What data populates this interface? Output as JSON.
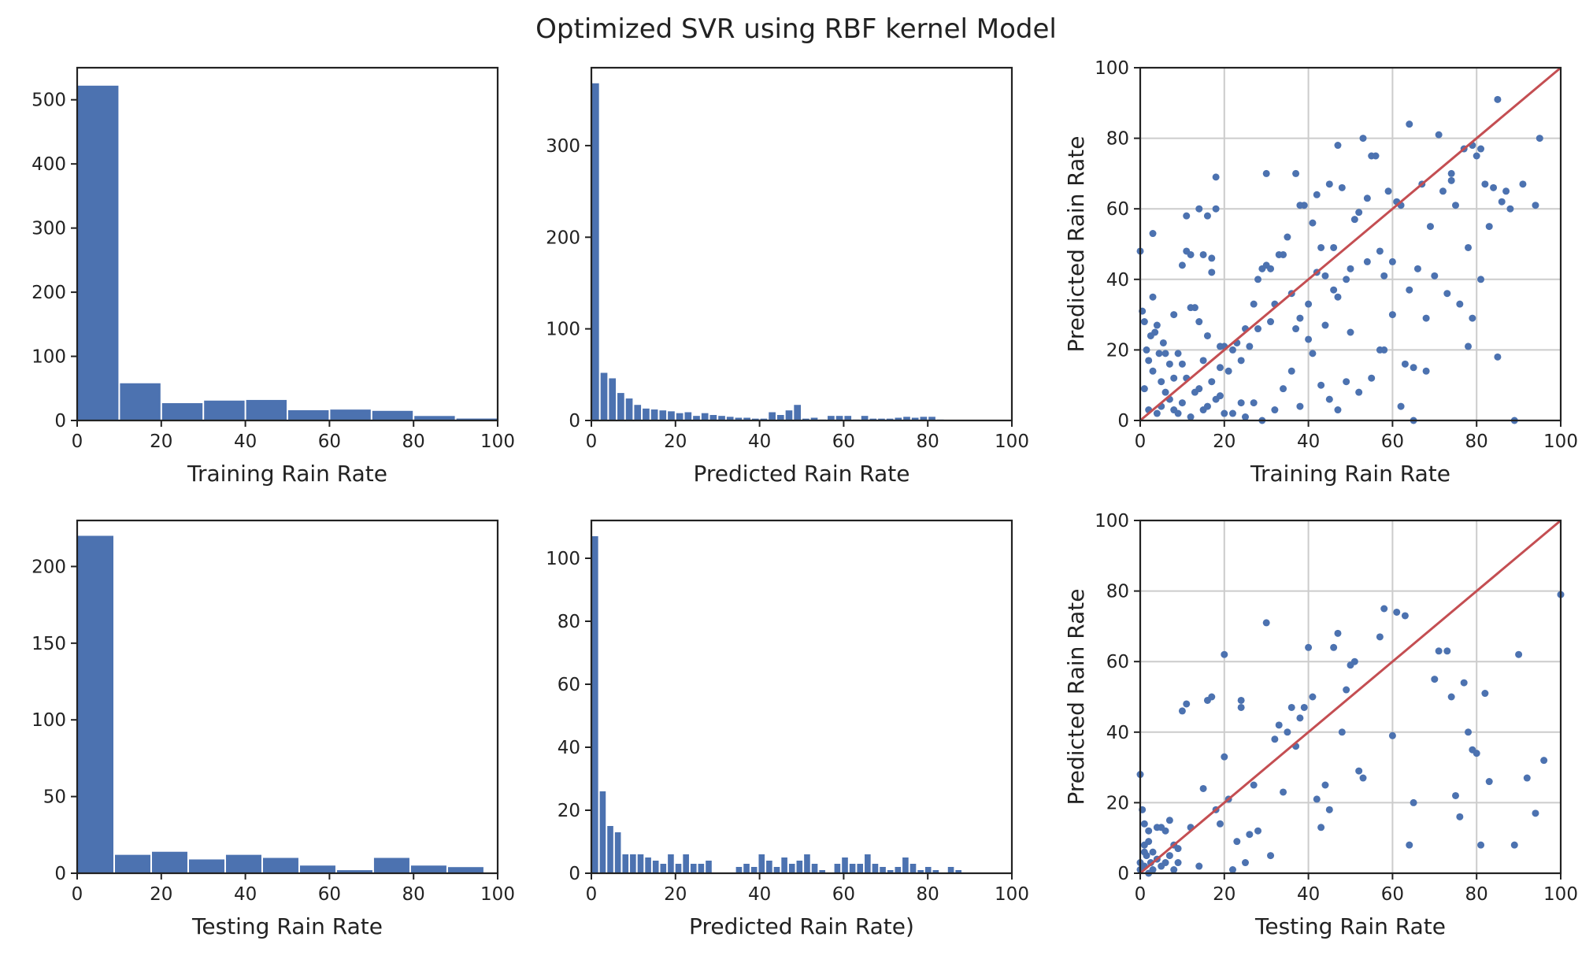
{
  "figure": {
    "title": "Optimized SVR using RBF kernel Model"
  },
  "colors": {
    "bar": "#4c72b0",
    "point": "#4c72b0",
    "diag": "#c44e52",
    "grid": "#cccccc",
    "axis": "#222222"
  },
  "chart_data": [
    {
      "type": "bar",
      "subtype": "histogram",
      "xlabel": "Training Rain Rate",
      "ylabel": "",
      "xlim": [
        0,
        100
      ],
      "ylim": [
        0,
        550
      ],
      "xticks": [
        0,
        20,
        40,
        60,
        80,
        100
      ],
      "yticks": [
        0,
        100,
        200,
        300,
        400,
        500
      ],
      "grid": false,
      "bin_width": 10,
      "bins": [
        0,
        10,
        20,
        30,
        40,
        50,
        60,
        70,
        80,
        90
      ],
      "values": [
        522,
        58,
        27,
        31,
        32,
        16,
        17,
        15,
        7,
        3
      ]
    },
    {
      "type": "bar",
      "subtype": "histogram",
      "xlabel": "Predicted Rain Rate",
      "ylabel": "",
      "xlim": [
        0,
        100
      ],
      "ylim": [
        0,
        385
      ],
      "xticks": [
        0,
        20,
        40,
        60,
        80,
        100
      ],
      "yticks": [
        0,
        100,
        200,
        300
      ],
      "grid": false,
      "bin_width": 2,
      "bins": [
        0,
        2,
        4,
        6,
        8,
        10,
        12,
        14,
        16,
        18,
        20,
        22,
        24,
        26,
        28,
        30,
        32,
        34,
        36,
        38,
        40,
        42,
        44,
        46,
        48,
        50,
        52,
        54,
        56,
        58,
        60,
        62,
        64,
        66,
        68,
        70,
        72,
        74,
        76,
        78,
        80,
        82
      ],
      "values": [
        368,
        52,
        46,
        30,
        24,
        17,
        13,
        12,
        11,
        10,
        8,
        9,
        5,
        8,
        6,
        5,
        4,
        3,
        3,
        2,
        2,
        9,
        6,
        11,
        17,
        2,
        3,
        1,
        5,
        5,
        5,
        1,
        5,
        2,
        2,
        2,
        3,
        4,
        3,
        4,
        4,
        1
      ]
    },
    {
      "type": "scatter",
      "xlabel": "Training Rain Rate",
      "ylabel": "Predicted Rain Rate",
      "xlim": [
        0,
        100
      ],
      "ylim": [
        0,
        100
      ],
      "xticks": [
        0,
        20,
        40,
        60,
        80,
        100
      ],
      "yticks": [
        0,
        20,
        40,
        60,
        80,
        100
      ],
      "grid": true,
      "diagonal": [
        [
          0,
          0
        ],
        [
          100,
          100
        ]
      ],
      "points": [
        [
          0,
          48
        ],
        [
          0.5,
          31
        ],
        [
          1,
          28
        ],
        [
          1.5,
          20
        ],
        [
          2,
          17
        ],
        [
          2.5,
          24
        ],
        [
          3,
          35
        ],
        [
          3,
          53
        ],
        [
          3.5,
          25
        ],
        [
          4,
          27
        ],
        [
          4.5,
          19
        ],
        [
          5,
          11
        ],
        [
          5.5,
          22
        ],
        [
          6,
          19
        ],
        [
          7,
          16
        ],
        [
          8,
          12
        ],
        [
          8,
          30
        ],
        [
          9,
          19
        ],
        [
          10,
          16
        ],
        [
          10,
          44
        ],
        [
          11,
          48
        ],
        [
          11,
          58
        ],
        [
          12,
          47
        ],
        [
          12,
          32
        ],
        [
          13,
          32
        ],
        [
          14,
          28
        ],
        [
          14,
          60
        ],
        [
          15,
          47
        ],
        [
          15,
          17
        ],
        [
          16,
          24
        ],
        [
          16,
          58
        ],
        [
          17,
          46
        ],
        [
          17,
          42
        ],
        [
          18,
          60
        ],
        [
          18,
          69
        ],
        [
          19,
          21
        ],
        [
          19,
          15
        ],
        [
          20,
          21
        ],
        [
          21,
          14
        ],
        [
          22,
          20
        ],
        [
          23,
          22
        ],
        [
          24,
          17
        ],
        [
          25,
          26
        ],
        [
          26,
          21
        ],
        [
          27,
          33
        ],
        [
          28,
          40
        ],
        [
          28,
          26
        ],
        [
          29,
          43
        ],
        [
          30,
          44
        ],
        [
          30,
          70
        ],
        [
          31,
          43
        ],
        [
          31,
          28
        ],
        [
          32,
          33
        ],
        [
          33,
          47
        ],
        [
          34,
          47
        ],
        [
          35,
          52
        ],
        [
          36,
          36
        ],
        [
          37,
          26
        ],
        [
          37,
          70
        ],
        [
          38,
          61
        ],
        [
          38,
          29
        ],
        [
          39,
          61
        ],
        [
          40,
          23
        ],
        [
          40,
          33
        ],
        [
          41,
          56
        ],
        [
          42,
          42
        ],
        [
          42,
          64
        ],
        [
          43,
          49
        ],
        [
          44,
          27
        ],
        [
          44,
          41
        ],
        [
          45,
          67
        ],
        [
          46,
          37
        ],
        [
          46,
          49
        ],
        [
          47,
          78
        ],
        [
          47,
          35
        ],
        [
          48,
          66
        ],
        [
          49,
          40
        ],
        [
          50,
          43
        ],
        [
          50,
          25
        ],
        [
          51,
          57
        ],
        [
          52,
          59
        ],
        [
          53,
          80
        ],
        [
          54,
          63
        ],
        [
          54,
          45
        ],
        [
          55,
          75
        ],
        [
          56,
          75
        ],
        [
          57,
          48
        ],
        [
          57,
          20
        ],
        [
          58,
          41
        ],
        [
          59,
          65
        ],
        [
          60,
          45
        ],
        [
          61,
          62
        ],
        [
          62,
          61
        ],
        [
          63,
          16
        ],
        [
          64,
          84
        ],
        [
          64,
          37
        ],
        [
          65,
          15
        ],
        [
          66,
          43
        ],
        [
          67,
          67
        ],
        [
          68,
          29
        ],
        [
          69,
          55
        ],
        [
          70,
          41
        ],
        [
          71,
          81
        ],
        [
          72,
          65
        ],
        [
          73,
          36
        ],
        [
          74,
          68
        ],
        [
          74,
          70
        ],
        [
          75,
          61
        ],
        [
          76,
          33
        ],
        [
          77,
          77
        ],
        [
          78,
          49
        ],
        [
          78,
          21
        ],
        [
          79,
          78
        ],
        [
          79,
          29
        ],
        [
          80,
          75
        ],
        [
          81,
          40
        ],
        [
          81,
          77
        ],
        [
          82,
          67
        ],
        [
          83,
          55
        ],
        [
          84,
          66
        ],
        [
          85,
          91
        ],
        [
          85,
          18
        ],
        [
          86,
          62
        ],
        [
          87,
          65
        ],
        [
          88,
          60
        ],
        [
          89,
          0
        ],
        [
          91,
          67
        ],
        [
          94,
          61
        ],
        [
          95,
          80
        ],
        [
          24,
          5
        ],
        [
          2,
          3
        ],
        [
          4,
          2
        ],
        [
          6,
          8
        ],
        [
          8,
          3
        ],
        [
          10,
          5
        ],
        [
          12,
          1
        ],
        [
          14,
          9
        ],
        [
          16,
          4
        ],
        [
          18,
          6
        ],
        [
          20,
          2
        ],
        [
          1,
          9
        ],
        [
          3,
          14
        ],
        [
          5,
          4
        ],
        [
          7,
          6
        ],
        [
          9,
          2
        ],
        [
          11,
          12
        ],
        [
          13,
          8
        ],
        [
          15,
          3
        ],
        [
          17,
          11
        ],
        [
          19,
          7
        ],
        [
          22,
          2
        ],
        [
          25,
          1
        ],
        [
          27,
          5
        ],
        [
          29,
          0
        ],
        [
          32,
          3
        ],
        [
          34,
          9
        ],
        [
          36,
          14
        ],
        [
          38,
          4
        ],
        [
          41,
          19
        ],
        [
          43,
          10
        ],
        [
          45,
          6
        ],
        [
          47,
          3
        ],
        [
          49,
          11
        ],
        [
          52,
          8
        ],
        [
          55,
          12
        ],
        [
          58,
          20
        ],
        [
          60,
          30
        ],
        [
          62,
          4
        ],
        [
          65,
          0
        ],
        [
          68,
          14
        ]
      ]
    },
    {
      "type": "bar",
      "subtype": "histogram",
      "xlabel": "Testing Rain Rate",
      "ylabel": "",
      "xlim": [
        0,
        100
      ],
      "ylim": [
        0,
        230
      ],
      "xticks": [
        0,
        20,
        40,
        60,
        80,
        100
      ],
      "yticks": [
        0,
        50,
        100,
        150,
        200
      ],
      "grid": false,
      "bin_width": 8.8,
      "bins": [
        0,
        8.8,
        17.6,
        26.4,
        35.2,
        44,
        52.8,
        61.6,
        70.4,
        79.2,
        88
      ],
      "values": [
        220,
        12,
        14,
        9,
        12,
        10,
        5,
        2,
        10,
        5,
        4
      ]
    },
    {
      "type": "bar",
      "subtype": "histogram",
      "xlabel": "Predicted Rain Rate)",
      "ylabel": "",
      "xlim": [
        0,
        100
      ],
      "ylim": [
        0,
        112
      ],
      "xticks": [
        0,
        20,
        40,
        60,
        80,
        100
      ],
      "yticks": [
        0,
        20,
        40,
        60,
        80,
        100
      ],
      "grid": false,
      "bin_width": 1.8,
      "bins": [
        0,
        1.8,
        3.6,
        5.4,
        7.2,
        9,
        10.8,
        12.6,
        14.4,
        16.2,
        18,
        19.8,
        21.6,
        23.4,
        25.2,
        27,
        28.8,
        30.6,
        32.4,
        34.2,
        36,
        37.8,
        39.6,
        41.4,
        43.2,
        45,
        46.8,
        48.6,
        50.4,
        52.2,
        54,
        55.8,
        57.6,
        59.4,
        61.2,
        63,
        64.8,
        66.6,
        68.4,
        70.2,
        72,
        73.8,
        75.6,
        77.4,
        79.2,
        81,
        82.8,
        84.6,
        86.4
      ],
      "values": [
        107,
        26,
        15,
        13,
        6,
        6,
        6,
        5,
        4,
        3,
        6,
        3,
        6,
        3,
        3,
        4,
        0,
        0,
        0,
        2,
        3,
        2,
        6,
        4,
        2,
        5,
        3,
        4,
        6,
        3,
        1,
        0,
        3,
        5,
        3,
        3,
        6,
        3,
        2,
        1,
        2,
        5,
        3,
        1,
        2,
        1,
        0,
        2,
        1
      ]
    },
    {
      "type": "scatter",
      "xlabel": "Testing Rain Rate",
      "ylabel": "Predicted Rain Rate",
      "xlim": [
        0,
        100
      ],
      "ylim": [
        0,
        100
      ],
      "xticks": [
        0,
        20,
        40,
        60,
        80,
        100
      ],
      "yticks": [
        0,
        20,
        40,
        60,
        80,
        100
      ],
      "grid": true,
      "diagonal": [
        [
          0,
          0
        ],
        [
          100,
          100
        ]
      ],
      "points": [
        [
          0,
          28
        ],
        [
          0.5,
          18
        ],
        [
          1,
          14
        ],
        [
          1,
          8
        ],
        [
          1.5,
          5
        ],
        [
          2,
          12
        ],
        [
          2.5,
          3
        ],
        [
          3,
          6
        ],
        [
          4,
          13
        ],
        [
          5,
          13
        ],
        [
          6,
          12
        ],
        [
          7,
          15
        ],
        [
          8,
          8
        ],
        [
          9,
          3
        ],
        [
          10,
          46
        ],
        [
          11,
          48
        ],
        [
          12,
          13
        ],
        [
          14,
          2
        ],
        [
          15,
          24
        ],
        [
          16,
          49
        ],
        [
          17,
          50
        ],
        [
          18,
          18
        ],
        [
          19,
          14
        ],
        [
          20,
          62
        ],
        [
          20,
          33
        ],
        [
          21,
          21
        ],
        [
          22,
          1
        ],
        [
          23,
          9
        ],
        [
          24,
          47
        ],
        [
          24,
          49
        ],
        [
          25,
          3
        ],
        [
          26,
          11
        ],
        [
          27,
          25
        ],
        [
          28,
          12
        ],
        [
          30,
          71
        ],
        [
          31,
          5
        ],
        [
          32,
          38
        ],
        [
          33,
          42
        ],
        [
          34,
          23
        ],
        [
          35,
          40
        ],
        [
          36,
          47
        ],
        [
          37,
          36
        ],
        [
          38,
          44
        ],
        [
          39,
          47
        ],
        [
          40,
          64
        ],
        [
          41,
          50
        ],
        [
          42,
          21
        ],
        [
          43,
          13
        ],
        [
          44,
          25
        ],
        [
          45,
          18
        ],
        [
          46,
          64
        ],
        [
          47,
          68
        ],
        [
          48,
          40
        ],
        [
          49,
          52
        ],
        [
          50,
          59
        ],
        [
          51,
          60
        ],
        [
          52,
          29
        ],
        [
          53,
          27
        ],
        [
          57,
          67
        ],
        [
          58,
          75
        ],
        [
          60,
          39
        ],
        [
          61,
          74
        ],
        [
          63,
          73
        ],
        [
          64,
          8
        ],
        [
          65,
          20
        ],
        [
          70,
          55
        ],
        [
          71,
          63
        ],
        [
          73,
          63
        ],
        [
          74,
          50
        ],
        [
          75,
          22
        ],
        [
          76,
          16
        ],
        [
          77,
          54
        ],
        [
          78,
          40
        ],
        [
          79,
          35
        ],
        [
          80,
          34
        ],
        [
          81,
          8
        ],
        [
          82,
          51
        ],
        [
          83,
          26
        ],
        [
          89,
          8
        ],
        [
          90,
          62
        ],
        [
          92,
          27
        ],
        [
          94,
          17
        ],
        [
          96,
          32
        ],
        [
          100,
          79
        ],
        [
          0,
          1
        ],
        [
          1,
          2
        ],
        [
          2,
          0
        ],
        [
          3,
          1
        ],
        [
          4,
          4
        ],
        [
          5,
          2
        ],
        [
          6,
          3
        ],
        [
          7,
          5
        ],
        [
          8,
          1
        ],
        [
          9,
          7
        ],
        [
          0,
          3
        ],
        [
          1,
          6
        ],
        [
          2,
          9
        ]
      ]
    }
  ]
}
